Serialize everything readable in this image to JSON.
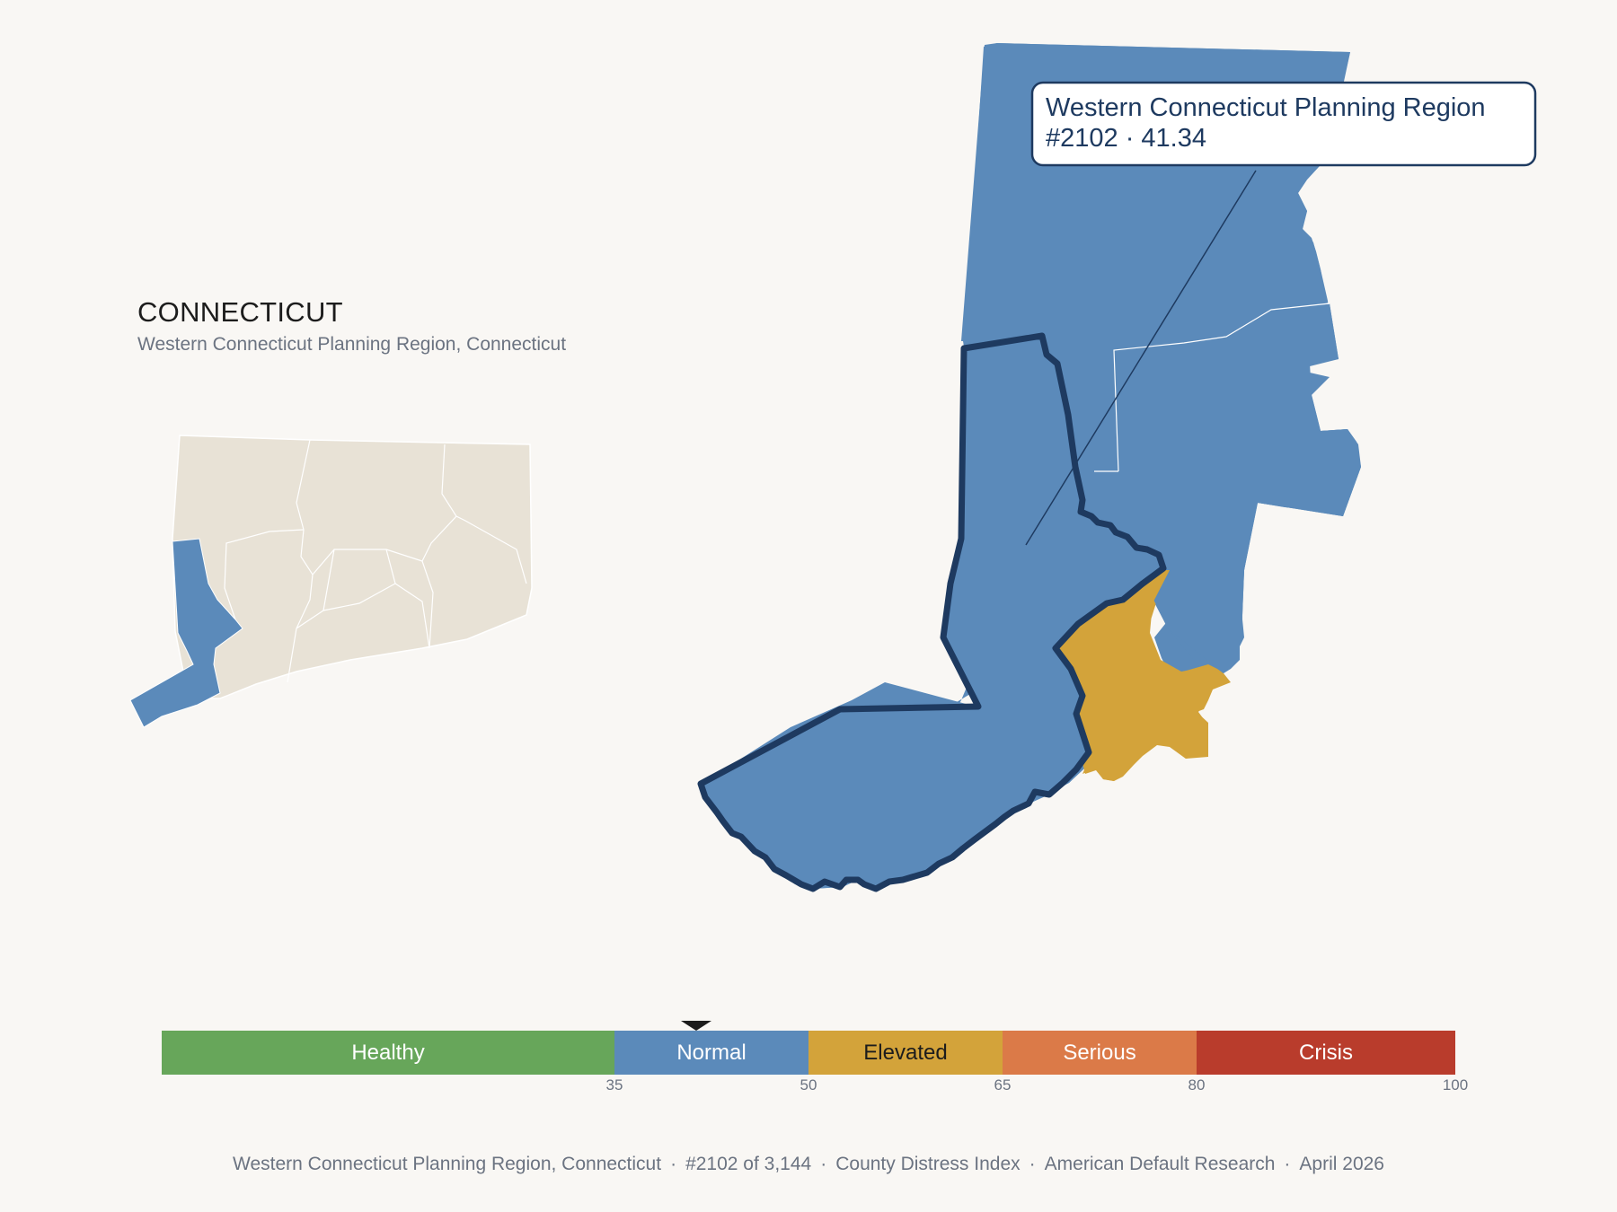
{
  "header": {
    "state": "CONNECTICUT",
    "subtitle": "Western Connecticut Planning Region, Connecticut"
  },
  "tooltip": {
    "name": "Western Connecticut Planning Region",
    "rank_value": "#2102 · 41.34"
  },
  "selected": {
    "name": "Western Connecticut Planning Region",
    "score": 41.34,
    "rank": 2102
  },
  "colors": {
    "healthy": "#67a65a",
    "normal": "#5b8aba",
    "elevated": "#d3a33a",
    "serious": "#db7a48",
    "crisis": "#b93c2c",
    "inactive": "#e8e2d6",
    "outline": "#1e3a60"
  },
  "scale": {
    "min": 0,
    "max": 100,
    "marker_value": 41.34,
    "segments": [
      {
        "label": "Healthy",
        "from": 0,
        "to": 35,
        "color": "#67a65a"
      },
      {
        "label": "Normal",
        "from": 35,
        "to": 50,
        "color": "#5b8aba"
      },
      {
        "label": "Elevated",
        "from": 50,
        "to": 65,
        "color": "#d3a33a"
      },
      {
        "label": "Serious",
        "from": 65,
        "to": 80,
        "color": "#db7a48"
      },
      {
        "label": "Crisis",
        "from": 80,
        "to": 100,
        "color": "#b93c2c"
      }
    ],
    "ticks": [
      "35",
      "50",
      "65",
      "80",
      "100"
    ]
  },
  "footer": {
    "region": "Western Connecticut Planning Region, Connecticut",
    "rank": "#2102 of 3,144",
    "index": "County Distress Index",
    "publisher": "American Default Research",
    "date": "April 2026"
  }
}
